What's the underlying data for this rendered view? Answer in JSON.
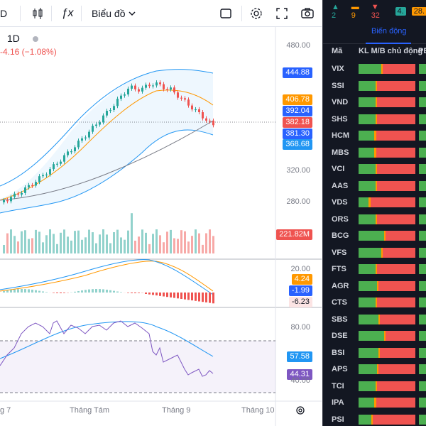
{
  "toolbar": {
    "symbol_suffix": "D",
    "indicators_label": "ƒx",
    "chart_type_label": "Biểu đồ",
    "icons": [
      "candles-icon",
      "function-icon",
      "square-icon",
      "gear-icon",
      "fullscreen-icon",
      "camera-icon"
    ]
  },
  "legend": {
    "interval": "1D",
    "change": "-4.16 (−1.08%)"
  },
  "price_scale": {
    "ticks": [
      "480.00",
      "320.00",
      "280.00"
    ],
    "badges": [
      {
        "value": "444.88",
        "color": "#2962ff"
      },
      {
        "value": "406.78",
        "color": "#ff9800"
      },
      {
        "value": "392.04",
        "color": "#2962ff"
      },
      {
        "value": "382.18",
        "color": "#ef5350"
      },
      {
        "value": "381.30",
        "color": "#2962ff"
      },
      {
        "value": "368.68",
        "color": "#2196f3"
      },
      {
        "value": "221.82M",
        "color": "#ef5350"
      }
    ]
  },
  "macd_scale": {
    "tick": "20.00",
    "badges": [
      {
        "value": "4.24",
        "color": "#ff9800"
      },
      {
        "value": "-1.99",
        "color": "#2962ff"
      },
      {
        "value": "-6.23",
        "color": "#fce4e4"
      }
    ]
  },
  "rsi_scale": {
    "tick_high": "80.00",
    "tick_low": "40.00",
    "badges": [
      {
        "value": "57.58",
        "color": "#2196f3"
      },
      {
        "value": "44.31",
        "color": "#7e57c2"
      }
    ]
  },
  "time_axis": [
    "g 7",
    "Tháng Tám",
    "Tháng 9",
    "Tháng 10"
  ],
  "panel": {
    "counts": [
      {
        "value": "2",
        "color": "#26a69a",
        "arrow": "▲"
      },
      {
        "value": "9",
        "color": "#ff9800",
        "arrow": "▬"
      },
      {
        "value": "32",
        "color": "#ef5350",
        "arrow": "▼"
      }
    ],
    "tag1": "4.",
    "tag2": "28.",
    "active_tab": "Biến động",
    "headers": {
      "symbol": "Mã",
      "col1": "KL M/B chủ động",
      "col2": "PE"
    },
    "rows": [
      {
        "sym": "VIX",
        "g": 40,
        "o": 3,
        "r": 57
      },
      {
        "sym": "SSI",
        "g": 30,
        "o": 3,
        "r": 67
      },
      {
        "sym": "VND",
        "g": 30,
        "o": 3,
        "r": 67
      },
      {
        "sym": "SHS",
        "g": 30,
        "o": 3,
        "r": 67
      },
      {
        "sym": "HCM",
        "g": 28,
        "o": 3,
        "r": 69
      },
      {
        "sym": "MBS",
        "g": 28,
        "o": 3,
        "r": 69
      },
      {
        "sym": "VCI",
        "g": 30,
        "o": 3,
        "r": 67
      },
      {
        "sym": "AAS",
        "g": 30,
        "o": 3,
        "r": 67
      },
      {
        "sym": "VDS",
        "g": 18,
        "o": 3,
        "r": 79
      },
      {
        "sym": "ORS",
        "g": 30,
        "o": 3,
        "r": 67
      },
      {
        "sym": "BCG",
        "g": 45,
        "o": 3,
        "r": 52
      },
      {
        "sym": "VFS",
        "g": 40,
        "o": 3,
        "r": 57
      },
      {
        "sym": "FTS",
        "g": 30,
        "o": 3,
        "r": 67
      },
      {
        "sym": "AGR",
        "g": 32,
        "o": 3,
        "r": 65
      },
      {
        "sym": "CTS",
        "g": 30,
        "o": 3,
        "r": 67
      },
      {
        "sym": "SBS",
        "g": 35,
        "o": 3,
        "r": 62
      },
      {
        "sym": "DSE",
        "g": 45,
        "o": 3,
        "r": 52
      },
      {
        "sym": "BSI",
        "g": 35,
        "o": 3,
        "r": 62
      },
      {
        "sym": "APS",
        "g": 32,
        "o": 3,
        "r": 65
      },
      {
        "sym": "TCI",
        "g": 30,
        "o": 3,
        "r": 67
      },
      {
        "sym": "IPA",
        "g": 28,
        "o": 3,
        "r": 69
      },
      {
        "sym": "PSI",
        "g": 22,
        "o": 3,
        "r": 75
      }
    ]
  }
}
